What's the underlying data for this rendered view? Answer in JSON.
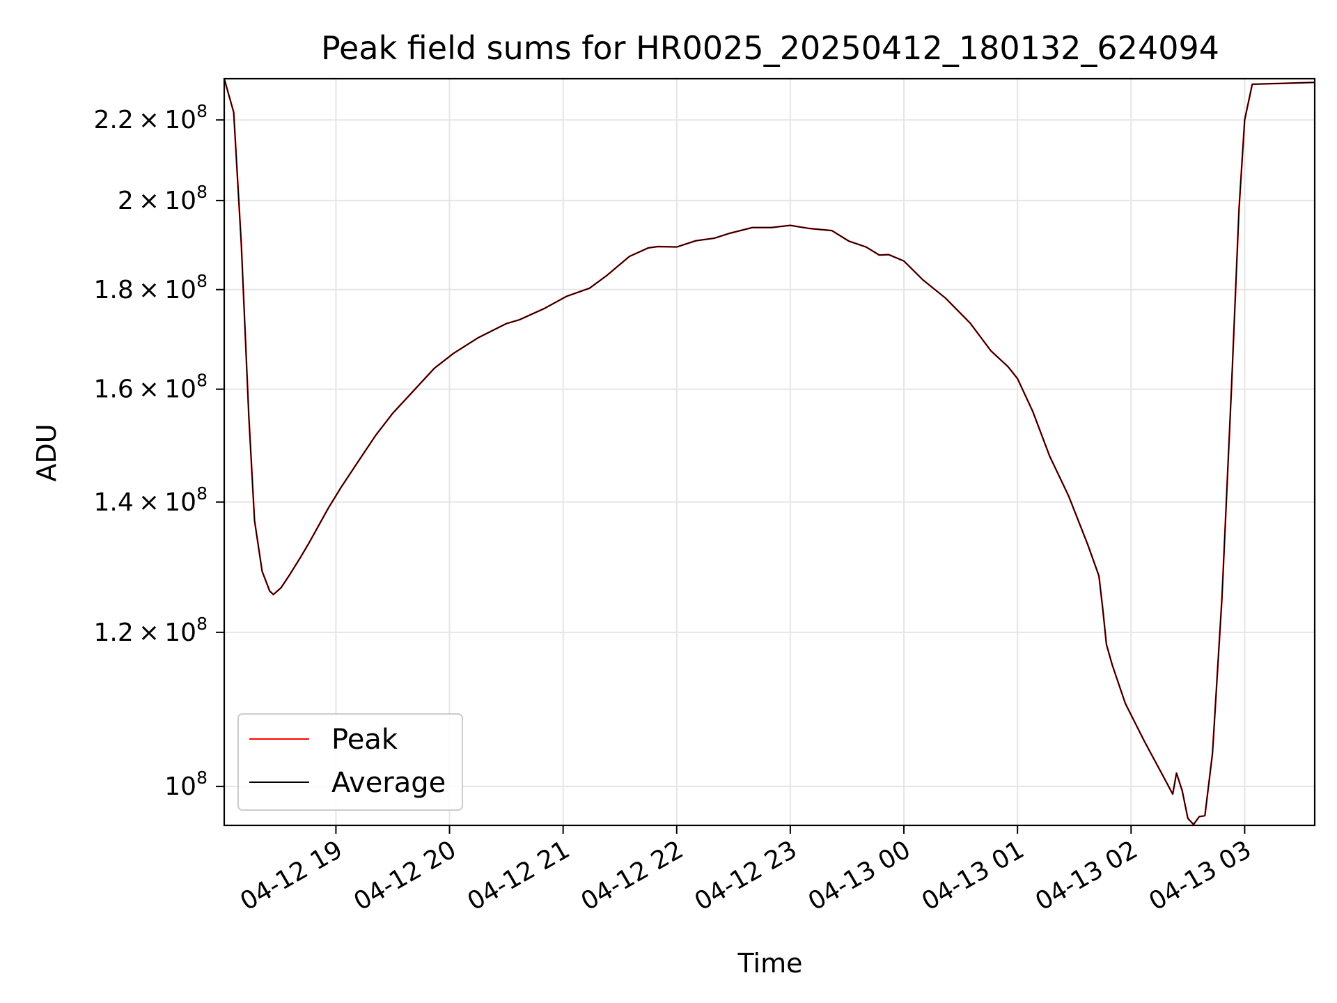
{
  "chart_data": {
    "type": "line",
    "title": "Peak field sums for HR0025_20250412_180132_624094",
    "xlabel": "Time",
    "ylabel": "ADU",
    "x_scale": "time",
    "y_scale": "log",
    "xlim": [
      "2025-04-12 18:01",
      "2025-04-13 03:37"
    ],
    "ylim": [
      95500000,
      231000000
    ],
    "grid": true,
    "legend_position": "lower-left",
    "x_ticks": [
      {
        "value": "2025-04-12 19:00",
        "label": "04-12 19"
      },
      {
        "value": "2025-04-12 20:00",
        "label": "04-12 20"
      },
      {
        "value": "2025-04-12 21:00",
        "label": "04-12 21"
      },
      {
        "value": "2025-04-12 22:00",
        "label": "04-12 22"
      },
      {
        "value": "2025-04-12 23:00",
        "label": "04-12 23"
      },
      {
        "value": "2025-04-13 00:00",
        "label": "04-13 00"
      },
      {
        "value": "2025-04-13 01:00",
        "label": "04-13 01"
      },
      {
        "value": "2025-04-13 02:00",
        "label": "04-13 02"
      },
      {
        "value": "2025-04-13 03:00",
        "label": "04-13 03"
      }
    ],
    "y_ticks": [
      {
        "value": 100000000,
        "mantissa": "",
        "exponent": "8"
      },
      {
        "value": 120000000,
        "mantissa": "1.2",
        "exponent": "8"
      },
      {
        "value": 140000000,
        "mantissa": "1.4",
        "exponent": "8"
      },
      {
        "value": 160000000,
        "mantissa": "1.6",
        "exponent": "8"
      },
      {
        "value": 180000000,
        "mantissa": "1.8",
        "exponent": "8"
      },
      {
        "value": 200000000,
        "mantissa": "2",
        "exponent": "8"
      },
      {
        "value": 220000000,
        "mantissa": "2.2",
        "exponent": "8"
      }
    ],
    "series": [
      {
        "name": "Peak",
        "color": "#ff0000",
        "points": [
          [
            "2025-04-12 18:01",
            231000000
          ],
          [
            "2025-04-12 18:06",
            222000000
          ],
          [
            "2025-04-12 18:10",
            190000000
          ],
          [
            "2025-04-12 18:14",
            155000000
          ],
          [
            "2025-04-12 18:17",
            137000000
          ],
          [
            "2025-04-12 18:21",
            129000000
          ],
          [
            "2025-04-12 18:25",
            126000000
          ],
          [
            "2025-04-12 18:27",
            125500000
          ],
          [
            "2025-04-12 18:31",
            126500000
          ],
          [
            "2025-04-12 18:35",
            128200000
          ],
          [
            "2025-04-12 18:41",
            131000000
          ],
          [
            "2025-04-12 18:46",
            133500000
          ],
          [
            "2025-04-12 18:56",
            139000000
          ],
          [
            "2025-04-12 19:03",
            142600000
          ],
          [
            "2025-04-12 19:11",
            146500000
          ],
          [
            "2025-04-12 19:21",
            151500000
          ],
          [
            "2025-04-12 19:30",
            155500000
          ],
          [
            "2025-04-12 19:41",
            159700000
          ],
          [
            "2025-04-12 19:52",
            164000000
          ],
          [
            "2025-04-12 20:02",
            166900000
          ],
          [
            "2025-04-12 20:15",
            170000000
          ],
          [
            "2025-04-12 20:30",
            172900000
          ],
          [
            "2025-04-12 20:37",
            173700000
          ],
          [
            "2025-04-12 20:50",
            176000000
          ],
          [
            "2025-04-12 21:02",
            178600000
          ],
          [
            "2025-04-12 21:14",
            180300000
          ],
          [
            "2025-04-12 21:23",
            183000000
          ],
          [
            "2025-04-12 21:35",
            187200000
          ],
          [
            "2025-04-12 21:45",
            189100000
          ],
          [
            "2025-04-12 21:50",
            189400000
          ],
          [
            "2025-04-12 22:00",
            189300000
          ],
          [
            "2025-04-12 22:10",
            190700000
          ],
          [
            "2025-04-12 22:20",
            191300000
          ],
          [
            "2025-04-12 22:28",
            192400000
          ],
          [
            "2025-04-12 22:40",
            193700000
          ],
          [
            "2025-04-12 22:50",
            193700000
          ],
          [
            "2025-04-12 23:00",
            194200000
          ],
          [
            "2025-04-12 23:10",
            193500000
          ],
          [
            "2025-04-12 23:22",
            193000000
          ],
          [
            "2025-04-12 23:31",
            190600000
          ],
          [
            "2025-04-12 23:40",
            189300000
          ],
          [
            "2025-04-12 23:47",
            187500000
          ],
          [
            "2025-04-12 23:52",
            187600000
          ],
          [
            "2025-04-13 00:00",
            186200000
          ],
          [
            "2025-04-13 00:10",
            182100000
          ],
          [
            "2025-04-13 00:22",
            178200000
          ],
          [
            "2025-04-13 00:35",
            173000000
          ],
          [
            "2025-04-13 00:46",
            167400000
          ],
          [
            "2025-04-13 00:55",
            164300000
          ],
          [
            "2025-04-13 01:00",
            162000000
          ],
          [
            "2025-04-13 01:08",
            155900000
          ],
          [
            "2025-04-13 01:17",
            147800000
          ],
          [
            "2025-04-13 01:27",
            141000000
          ],
          [
            "2025-04-13 01:37",
            133200000
          ],
          [
            "2025-04-13 01:43",
            128300000
          ],
          [
            "2025-04-13 01:45",
            123500000
          ],
          [
            "2025-04-13 01:47",
            118300000
          ],
          [
            "2025-04-13 01:50",
            115500000
          ],
          [
            "2025-04-13 01:57",
            110300000
          ],
          [
            "2025-04-13 02:07",
            105500000
          ],
          [
            "2025-04-13 02:17",
            101200000
          ],
          [
            "2025-04-13 02:22",
            99100000
          ],
          [
            "2025-04-13 02:24",
            101600000
          ],
          [
            "2025-04-13 02:27",
            99500000
          ],
          [
            "2025-04-13 02:30",
            96300000
          ],
          [
            "2025-04-13 02:33",
            95600000
          ],
          [
            "2025-04-13 02:36",
            96500000
          ],
          [
            "2025-04-13 02:39",
            96600000
          ],
          [
            "2025-04-13 02:43",
            104000000
          ],
          [
            "2025-04-13 02:48",
            125000000
          ],
          [
            "2025-04-13 02:53",
            160000000
          ],
          [
            "2025-04-13 02:57",
            198000000
          ],
          [
            "2025-04-13 03:00",
            220000000
          ],
          [
            "2025-04-13 03:04",
            229500000
          ],
          [
            "2025-04-13 03:37",
            230000000
          ]
        ]
      },
      {
        "name": "Average",
        "color": "#000000",
        "points": [
          [
            "2025-04-12 18:01",
            231000000
          ],
          [
            "2025-04-12 18:06",
            222000000
          ],
          [
            "2025-04-12 18:10",
            190000000
          ],
          [
            "2025-04-12 18:14",
            155000000
          ],
          [
            "2025-04-12 18:17",
            137000000
          ],
          [
            "2025-04-12 18:21",
            129000000
          ],
          [
            "2025-04-12 18:25",
            126000000
          ],
          [
            "2025-04-12 18:27",
            125500000
          ],
          [
            "2025-04-12 18:31",
            126500000
          ],
          [
            "2025-04-12 18:35",
            128200000
          ],
          [
            "2025-04-12 18:41",
            131000000
          ],
          [
            "2025-04-12 18:46",
            133500000
          ],
          [
            "2025-04-12 18:56",
            139000000
          ],
          [
            "2025-04-12 19:03",
            142600000
          ],
          [
            "2025-04-12 19:11",
            146500000
          ],
          [
            "2025-04-12 19:21",
            151500000
          ],
          [
            "2025-04-12 19:30",
            155500000
          ],
          [
            "2025-04-12 19:41",
            159700000
          ],
          [
            "2025-04-12 19:52",
            164000000
          ],
          [
            "2025-04-12 20:02",
            166900000
          ],
          [
            "2025-04-12 20:15",
            170000000
          ],
          [
            "2025-04-12 20:30",
            172900000
          ],
          [
            "2025-04-12 20:37",
            173700000
          ],
          [
            "2025-04-12 20:50",
            176000000
          ],
          [
            "2025-04-12 21:02",
            178600000
          ],
          [
            "2025-04-12 21:14",
            180300000
          ],
          [
            "2025-04-12 21:23",
            183000000
          ],
          [
            "2025-04-12 21:35",
            187200000
          ],
          [
            "2025-04-12 21:45",
            189100000
          ],
          [
            "2025-04-12 21:50",
            189400000
          ],
          [
            "2025-04-12 22:00",
            189300000
          ],
          [
            "2025-04-12 22:10",
            190700000
          ],
          [
            "2025-04-12 22:20",
            191300000
          ],
          [
            "2025-04-12 22:28",
            192400000
          ],
          [
            "2025-04-12 22:40",
            193700000
          ],
          [
            "2025-04-12 22:50",
            193700000
          ],
          [
            "2025-04-12 23:00",
            194200000
          ],
          [
            "2025-04-12 23:10",
            193500000
          ],
          [
            "2025-04-12 23:22",
            193000000
          ],
          [
            "2025-04-12 23:31",
            190600000
          ],
          [
            "2025-04-12 23:40",
            189300000
          ],
          [
            "2025-04-12 23:47",
            187500000
          ],
          [
            "2025-04-12 23:52",
            187600000
          ],
          [
            "2025-04-13 00:00",
            186200000
          ],
          [
            "2025-04-13 00:10",
            182100000
          ],
          [
            "2025-04-13 00:22",
            178200000
          ],
          [
            "2025-04-13 00:35",
            173000000
          ],
          [
            "2025-04-13 00:46",
            167400000
          ],
          [
            "2025-04-13 00:55",
            164300000
          ],
          [
            "2025-04-13 01:00",
            162000000
          ],
          [
            "2025-04-13 01:08",
            155900000
          ],
          [
            "2025-04-13 01:17",
            147800000
          ],
          [
            "2025-04-13 01:27",
            141000000
          ],
          [
            "2025-04-13 01:37",
            133200000
          ],
          [
            "2025-04-13 01:43",
            128300000
          ],
          [
            "2025-04-13 01:45",
            123500000
          ],
          [
            "2025-04-13 01:47",
            118300000
          ],
          [
            "2025-04-13 01:50",
            115500000
          ],
          [
            "2025-04-13 01:57",
            110300000
          ],
          [
            "2025-04-13 02:07",
            105500000
          ],
          [
            "2025-04-13 02:17",
            101200000
          ],
          [
            "2025-04-13 02:22",
            99100000
          ],
          [
            "2025-04-13 02:24",
            101600000
          ],
          [
            "2025-04-13 02:27",
            99500000
          ],
          [
            "2025-04-13 02:30",
            96300000
          ],
          [
            "2025-04-13 02:33",
            95600000
          ],
          [
            "2025-04-13 02:36",
            96500000
          ],
          [
            "2025-04-13 02:39",
            96600000
          ],
          [
            "2025-04-13 02:43",
            104000000
          ],
          [
            "2025-04-13 02:48",
            125000000
          ],
          [
            "2025-04-13 02:53",
            160000000
          ],
          [
            "2025-04-13 02:57",
            198000000
          ],
          [
            "2025-04-13 03:00",
            220000000
          ],
          [
            "2025-04-13 03:04",
            229500000
          ],
          [
            "2025-04-13 03:37",
            230000000
          ]
        ]
      }
    ]
  }
}
